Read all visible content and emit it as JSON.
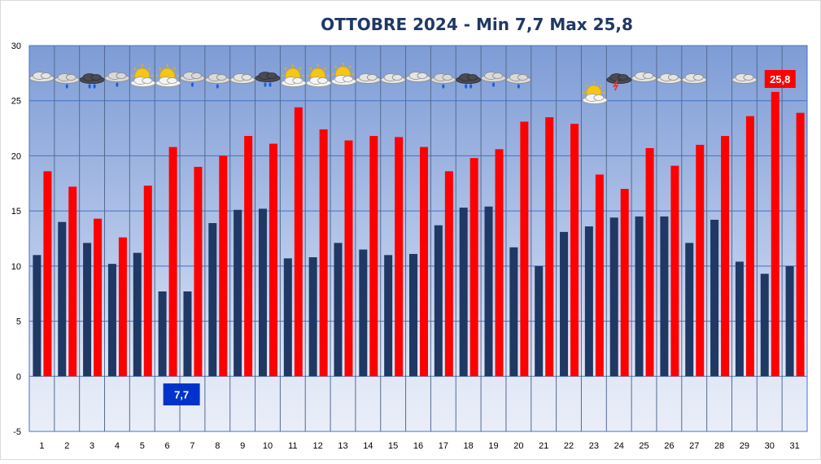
{
  "chart_data": {
    "type": "bar",
    "title": "OTTOBRE 2024 - Min 7,7 Max 25,8",
    "xlabel": "",
    "ylabel": "",
    "ylim": [
      -5,
      30
    ],
    "yticks": [
      -5,
      0,
      5,
      10,
      15,
      20,
      25,
      30
    ],
    "grid": true,
    "categories": [
      "1",
      "2",
      "3",
      "4",
      "5",
      "6",
      "7",
      "8",
      "9",
      "10",
      "11",
      "12",
      "13",
      "14",
      "15",
      "16",
      "17",
      "18",
      "19",
      "20",
      "21",
      "22",
      "23",
      "24",
      "25",
      "26",
      "27",
      "28",
      "29",
      "30",
      "31"
    ],
    "series": [
      {
        "key": "min",
        "color": "#1f3864",
        "values": [
          11.0,
          14.0,
          12.1,
          10.2,
          11.2,
          7.7,
          7.7,
          13.9,
          15.1,
          15.2,
          10.7,
          10.8,
          12.1,
          11.5,
          11.0,
          11.1,
          13.7,
          15.3,
          15.4,
          11.7,
          10.0,
          13.1,
          13.6,
          14.4,
          14.5,
          14.5,
          12.1,
          14.2,
          10.4,
          9.3,
          10.0
        ]
      },
      {
        "key": "max",
        "color": "#ff0000",
        "values": [
          18.6,
          17.2,
          14.3,
          12.6,
          17.3,
          20.8,
          19.0,
          20.0,
          21.8,
          21.1,
          24.4,
          22.4,
          21.4,
          21.8,
          21.7,
          20.8,
          18.6,
          19.8,
          20.6,
          23.1,
          23.5,
          22.9,
          18.3,
          17.0,
          20.7,
          19.1,
          21.0,
          21.8,
          23.6,
          25.8,
          23.9
        ]
      }
    ],
    "annotations": [
      {
        "text": "7,7",
        "day": 6,
        "color": "#0033cc"
      },
      {
        "text": "25,8",
        "day": 30,
        "color": "#ff0000"
      }
    ],
    "weather_icons": [
      "cloud",
      "rain",
      "storm-rain",
      "rain",
      "sun-cloud",
      "sun-cloud",
      "rain",
      "rain",
      "cloud",
      "storm-rain",
      "sun-cloud",
      "sun-cloud",
      "sun-cloud",
      "cloud",
      "cloud",
      "cloud",
      "rain",
      "storm-rain",
      "rain",
      "rain",
      "",
      "",
      "sun-cloud",
      "thunder",
      "cloud",
      "cloud",
      "cloud",
      "",
      "cloud",
      "",
      ""
    ]
  }
}
